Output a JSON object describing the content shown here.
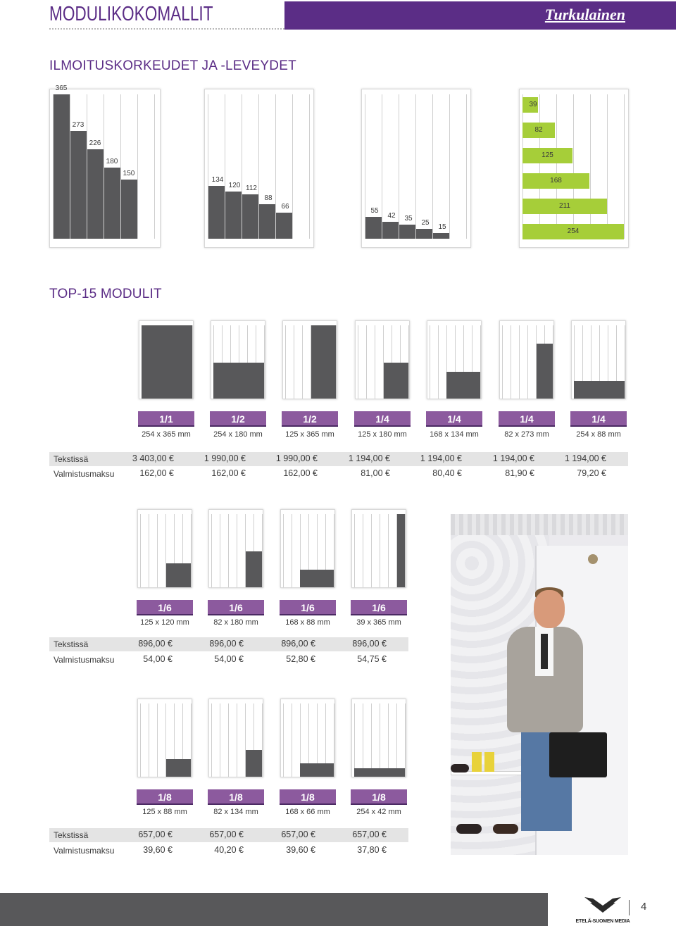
{
  "header": {
    "title": "MODULIKOKOMALLIT",
    "brand": "Turkulainen"
  },
  "sections": {
    "sizes_title": "ILMOITUSKORKEUDET JA -LEVEYDET",
    "top15_title": "TOP-15 MODULIT"
  },
  "height_charts": [
    {
      "values": [
        "365",
        "273",
        "226",
        "180",
        "150"
      ]
    },
    {
      "values": [
        "134",
        "120",
        "112",
        "88",
        "66"
      ]
    },
    {
      "values": [
        "55",
        "42",
        "35",
        "25",
        "15"
      ]
    }
  ],
  "width_chart": {
    "values": [
      "39",
      "82",
      "125",
      "168",
      "211",
      "254"
    ]
  },
  "groups": [
    {
      "modules": [
        {
          "badge": "1/1",
          "dim": "254 x 365 mm",
          "tekstissa": "3 403,00 €",
          "valmistus": "162,00 €"
        },
        {
          "badge": "1/2",
          "dim": "254 x 180 mm",
          "tekstissa": "1 990,00 €",
          "valmistus": "162,00 €"
        },
        {
          "badge": "1/2",
          "dim": "125 x 365 mm",
          "tekstissa": "1 990,00 €",
          "valmistus": "162,00 €"
        },
        {
          "badge": "1/4",
          "dim": "125 x 180 mm",
          "tekstissa": "1 194,00 €",
          "valmistus": "81,00 €"
        },
        {
          "badge": "1/4",
          "dim": "168 x 134 mm",
          "tekstissa": "1 194,00 €",
          "valmistus": "80,40 €"
        },
        {
          "badge": "1/4",
          "dim": "82 x 273 mm",
          "tekstissa": "1 194,00 €",
          "valmistus": "81,90 €"
        },
        {
          "badge": "1/4",
          "dim": "254 x 88 mm",
          "tekstissa": "1 194,00 €",
          "valmistus": "79,20 €"
        }
      ]
    },
    {
      "modules": [
        {
          "badge": "1/6",
          "dim": "125 x 120 mm",
          "tekstissa": "896,00 €",
          "valmistus": "54,00 €"
        },
        {
          "badge": "1/6",
          "dim": "82 x 180 mm",
          "tekstissa": "896,00 €",
          "valmistus": "54,00 €"
        },
        {
          "badge": "1/6",
          "dim": "168 x 88 mm",
          "tekstissa": "896,00 €",
          "valmistus": "52,80 €"
        },
        {
          "badge": "1/6",
          "dim": "39 x 365 mm",
          "tekstissa": "896,00 €",
          "valmistus": "54,75 €"
        }
      ]
    },
    {
      "modules": [
        {
          "badge": "1/8",
          "dim": "125 x 88 mm",
          "tekstissa": "657,00 €",
          "valmistus": "39,60 €"
        },
        {
          "badge": "1/8",
          "dim": "82 x 134 mm",
          "tekstissa": "657,00 €",
          "valmistus": "40,20 €"
        },
        {
          "badge": "1/8",
          "dim": "168 x 66 mm",
          "tekstissa": "657,00 €",
          "valmistus": "39,60 €"
        },
        {
          "badge": "1/8",
          "dim": "254 x 42 mm",
          "tekstissa": "657,00 €",
          "valmistus": "37,80 €"
        }
      ]
    }
  ],
  "row_labels": {
    "tekstissa": "Tekstissä",
    "valmistus": "Valmistusmaksu"
  },
  "footer": {
    "logo": "ETELÄ-SUOMEN MEDIA",
    "page": "4"
  },
  "colors": {
    "purple": "#5b2d86",
    "badge": "#8c5a9e",
    "dark": "#58585a",
    "green": "#a6ce39"
  }
}
